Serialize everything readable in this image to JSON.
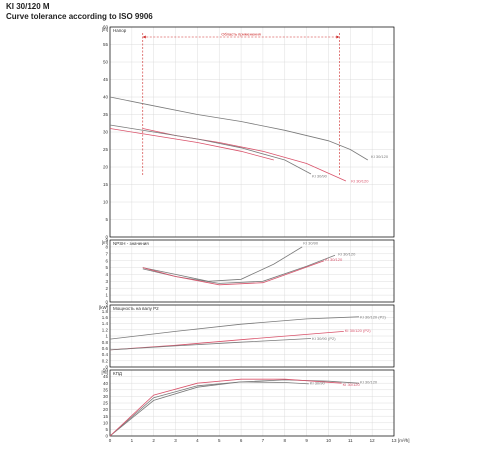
{
  "header": {
    "title": "KI 30/120 M",
    "subtitle": "Curve tolerance according to ISO 9906"
  },
  "colors": {
    "gray_series": "#7a7a7a",
    "red_series": "#d9536b",
    "range_marker": "#cc2222",
    "frame": "#000000"
  },
  "chart_data": {
    "type": "line",
    "shared_x": {
      "unit": "[m³/h]",
      "range": [
        0,
        13
      ],
      "ticks": [
        0,
        1,
        2,
        3,
        4,
        5,
        6,
        7,
        8,
        9,
        10,
        11,
        12,
        13
      ]
    },
    "panels": [
      {
        "id": "head",
        "unit": "[m]",
        "label": "Напор",
        "ylim": [
          0,
          60
        ],
        "ticks": [
          0,
          5,
          10,
          15,
          20,
          25,
          30,
          35,
          40,
          45,
          50,
          55,
          60
        ],
        "range_annotation": {
          "label": "Область применения",
          "x_from": 1.5,
          "x_to": 10.5
        },
        "series": [
          {
            "name": "KI 30/120",
            "color": "gray",
            "label_at": [
              11.9,
              23.0
            ],
            "points": [
              [
                0,
                40
              ],
              [
                2,
                37.5
              ],
              [
                4,
                35
              ],
              [
                6,
                33
              ],
              [
                8,
                30.5
              ],
              [
                10,
                27.5
              ],
              [
                11,
                25
              ],
              [
                11.8,
                22
              ]
            ]
          },
          {
            "name": "KI 30/120",
            "color": "red",
            "label_at": [
              11.0,
              16.0
            ],
            "points": [
              [
                1.5,
                31
              ],
              [
                3,
                29
              ],
              [
                5,
                27
              ],
              [
                7,
                24.5
              ],
              [
                9,
                21
              ],
              [
                10.8,
                16
              ]
            ]
          },
          {
            "name": "KI 30/90",
            "color": "gray",
            "label_at": [
              9.2,
              17.5
            ],
            "points": [
              [
                0,
                32
              ],
              [
                2,
                30
              ],
              [
                4,
                28
              ],
              [
                6,
                25.5
              ],
              [
                8,
                22
              ],
              [
                9.2,
                18
              ]
            ]
          },
          {
            "name": "",
            "color": "red",
            "points": [
              [
                0,
                31
              ],
              [
                2,
                29
              ],
              [
                4,
                27
              ],
              [
                6,
                24.5
              ],
              [
                7.5,
                22
              ]
            ]
          }
        ]
      },
      {
        "id": "npsh",
        "unit": "[m]",
        "label": "NPSH - значения",
        "ylim": [
          0,
          9
        ],
        "ticks": [
          0,
          1,
          2,
          3,
          4,
          5,
          6,
          7,
          8,
          9
        ],
        "series": [
          {
            "name": "KI 30/90",
            "color": "gray",
            "label_at": [
              8.8,
              8.6
            ],
            "points": [
              [
                1.5,
                5
              ],
              [
                3,
                4
              ],
              [
                4.5,
                3
              ],
              [
                6,
                3.3
              ],
              [
                7.5,
                5.5
              ],
              [
                8.8,
                8
              ]
            ]
          },
          {
            "name": "KI 30/120",
            "color": "gray",
            "label_at": [
              10.4,
              7.0
            ],
            "points": [
              [
                1.5,
                4.8
              ],
              [
                3,
                3.7
              ],
              [
                5,
                2.7
              ],
              [
                7,
                3
              ],
              [
                9,
                5.2
              ],
              [
                10.3,
                6.8
              ]
            ]
          },
          {
            "name": "KI 30/120",
            "color": "red",
            "label_at": [
              9.8,
              6.2
            ],
            "points": [
              [
                1.5,
                5
              ],
              [
                3,
                3.7
              ],
              [
                5,
                2.5
              ],
              [
                7,
                2.8
              ],
              [
                8.5,
                4.5
              ],
              [
                9.8,
                6
              ]
            ]
          }
        ]
      },
      {
        "id": "power",
        "unit": "[kW]",
        "label": "Мощность на валу P2",
        "ylim": [
          0,
          2
        ],
        "ticks": [
          0,
          0.2,
          0.4,
          0.6,
          0.8,
          1,
          1.2,
          1.4,
          1.6,
          1.8,
          2
        ],
        "series": [
          {
            "name": "KI 30/120 (P2)",
            "color": "gray",
            "label_at": [
              11.4,
              1.62
            ],
            "points": [
              [
                0,
                0.9
              ],
              [
                3,
                1.15
              ],
              [
                6,
                1.38
              ],
              [
                9,
                1.55
              ],
              [
                11.4,
                1.62
              ]
            ]
          },
          {
            "name": "KI 30/120 (P2)",
            "color": "red",
            "label_at": [
              10.7,
              1.18
            ],
            "points": [
              [
                0,
                0.55
              ],
              [
                3,
                0.7
              ],
              [
                6,
                0.88
              ],
              [
                9,
                1.05
              ],
              [
                10.7,
                1.15
              ]
            ]
          },
          {
            "name": "KI 30/90 (P2)",
            "color": "gray",
            "label_at": [
              9.2,
              0.92
            ],
            "points": [
              [
                0,
                0.55
              ],
              [
                3,
                0.68
              ],
              [
                6,
                0.8
              ],
              [
                9.2,
                0.92
              ]
            ]
          }
        ]
      },
      {
        "id": "eff",
        "unit": "[%]",
        "label": "КПД",
        "ylim": [
          0,
          50
        ],
        "ticks": [
          0,
          5,
          10,
          15,
          20,
          25,
          30,
          35,
          40,
          45,
          50
        ],
        "series": [
          {
            "name": "KI 30/120",
            "color": "gray",
            "label_at": [
              11.4,
              41
            ],
            "points": [
              [
                0,
                0
              ],
              [
                2,
                27
              ],
              [
                4,
                37
              ],
              [
                6,
                41
              ],
              [
                8,
                42.5
              ],
              [
                10,
                41.5
              ],
              [
                11.4,
                40
              ]
            ]
          },
          {
            "name": "KI 30/90",
            "color": "gray",
            "label_at": [
              9.1,
              40
            ],
            "points": [
              [
                0,
                0
              ],
              [
                2,
                29
              ],
              [
                4,
                38
              ],
              [
                6,
                41
              ],
              [
                8,
                40.5
              ],
              [
                9.1,
                39.5
              ]
            ]
          },
          {
            "name": "KI 30/120",
            "color": "red",
            "label_at": [
              10.6,
              39
            ],
            "points": [
              [
                0,
                0
              ],
              [
                2,
                31
              ],
              [
                4,
                40
              ],
              [
                6,
                43
              ],
              [
                8,
                43
              ],
              [
                10.6,
                40
              ]
            ]
          }
        ]
      }
    ]
  }
}
